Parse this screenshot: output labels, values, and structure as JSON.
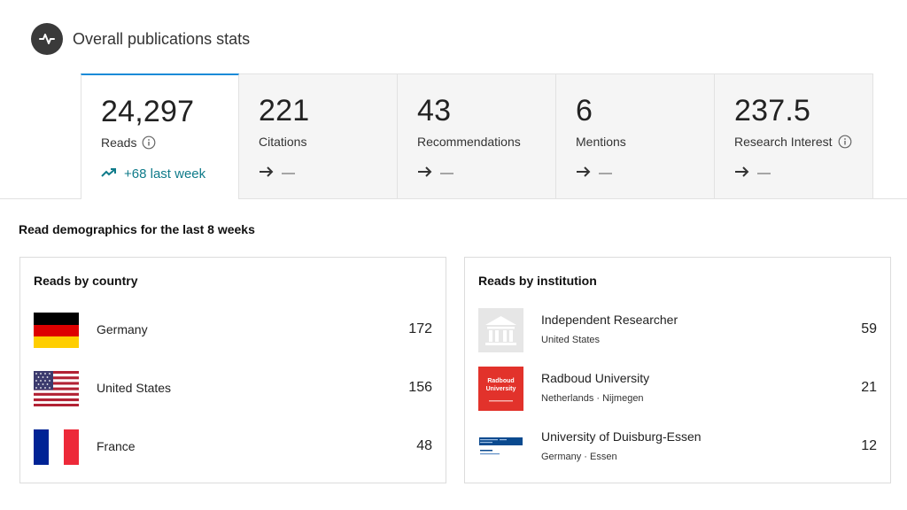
{
  "header": {
    "title": "Overall publications stats",
    "icon": "activity-pulse-icon"
  },
  "stats": [
    {
      "value": "24,297",
      "label": "Reads",
      "info": true,
      "trend": "up",
      "trend_text": "+68 last week"
    },
    {
      "value": "221",
      "label": "Citations",
      "info": false,
      "trend": "flat",
      "trend_text": "—"
    },
    {
      "value": "43",
      "label": "Recommendations",
      "info": false,
      "trend": "flat",
      "trend_text": "—"
    },
    {
      "value": "6",
      "label": "Mentions",
      "info": false,
      "trend": "flat",
      "trend_text": "—"
    },
    {
      "value": "237.5",
      "label": "Research Interest",
      "info": true,
      "trend": "flat",
      "trend_text": "—"
    }
  ],
  "demographics": {
    "title": "Read demographics for the last 8 weeks",
    "by_country": {
      "title": "Reads by country",
      "rows": [
        {
          "name": "Germany",
          "count": "172",
          "flag": "germany-flag-icon"
        },
        {
          "name": "United States",
          "count": "156",
          "flag": "usa-flag-icon"
        },
        {
          "name": "France",
          "count": "48",
          "flag": "france-flag-icon"
        }
      ]
    },
    "by_institution": {
      "title": "Reads by institution",
      "rows": [
        {
          "name": "Independent Researcher",
          "location": "United States",
          "count": "59",
          "logo": "institution-building-icon"
        },
        {
          "name": "Radboud University",
          "location": "Netherlands · Nijmegen",
          "count": "21",
          "logo": "radboud-logo",
          "logo_text_1": "Radboud",
          "logo_text_2": "University"
        },
        {
          "name": "University of Duisburg-Essen",
          "location": "Germany · Essen",
          "count": "12",
          "logo": "duisburg-essen-logo"
        }
      ]
    }
  },
  "colors": {
    "accent": "#1a8bd8",
    "trend_up": "#0f7b8a",
    "tile_bg": "#f5f5f5",
    "radboud_red": "#e2322b"
  }
}
